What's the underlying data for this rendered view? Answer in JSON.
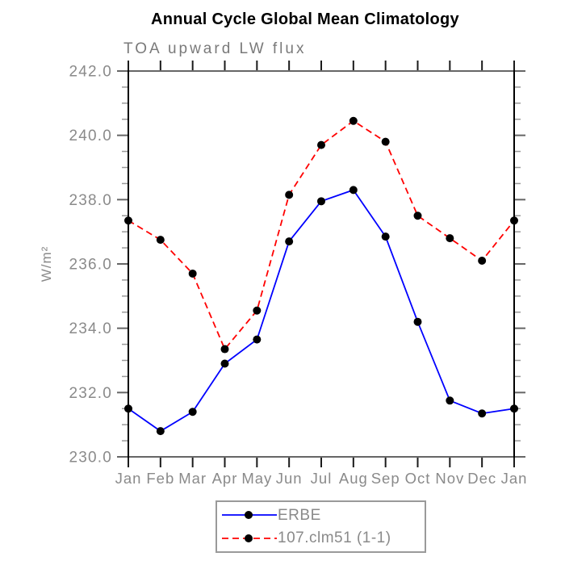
{
  "title": "Annual Cycle Global Mean Climatology",
  "subtitle": "TOA upward LW flux",
  "ylabel": "W/m²",
  "colors": {
    "title": "#000000",
    "subtitle_text": "#7a7a7a",
    "axis_text": "#8a8a8a",
    "horizontal_frame": "#666666",
    "vertical_frame": "#000000",
    "month_tick": "#1a1a1a",
    "y_major_tick": "#666666",
    "y_minor_tick": "#999999",
    "marker": "#000000",
    "legend_border": "#9a9a9a",
    "series_erbe": "#0000ff",
    "series_model": "#ff0000"
  },
  "legend": {
    "rows": [
      {
        "label": "ERBE"
      },
      {
        "label": "107.clm51 (1-1)"
      }
    ]
  },
  "chart_data": {
    "type": "line",
    "title": "Annual Cycle Global Mean Climatology",
    "subtitle": "TOA upward LW flux",
    "xlabel": "",
    "ylabel": "W/m²",
    "categories": [
      "Jan",
      "Feb",
      "Mar",
      "Apr",
      "May",
      "Jun",
      "Jul",
      "Aug",
      "Sep",
      "Oct",
      "Nov",
      "Dec",
      "Jan"
    ],
    "series": [
      {
        "name": "ERBE",
        "color": "#0000ff",
        "line_style": "solid",
        "dasharray": "none",
        "marker": "circle",
        "marker_color": "#000000",
        "values": [
          231.5,
          230.8,
          231.4,
          232.9,
          233.65,
          236.7,
          237.95,
          238.3,
          236.85,
          234.2,
          231.75,
          231.35,
          231.5
        ]
      },
      {
        "name": "107.clm51 (1-1)",
        "color": "#ff0000",
        "line_style": "dashed",
        "dasharray": "8,5",
        "marker": "circle",
        "marker_color": "#000000",
        "values": [
          237.35,
          236.75,
          235.7,
          233.35,
          234.55,
          238.15,
          239.7,
          240.45,
          239.8,
          237.5,
          236.8,
          236.1,
          237.35
        ]
      }
    ],
    "ylim": [
      230.0,
      242.0
    ],
    "y_major_ticks": [
      230.0,
      232.0,
      234.0,
      236.0,
      238.0,
      240.0,
      242.0
    ],
    "y_minor_step": 0.5,
    "tick_label_format": "one_decimal",
    "grid": false,
    "legend_position": "bottom-center"
  }
}
